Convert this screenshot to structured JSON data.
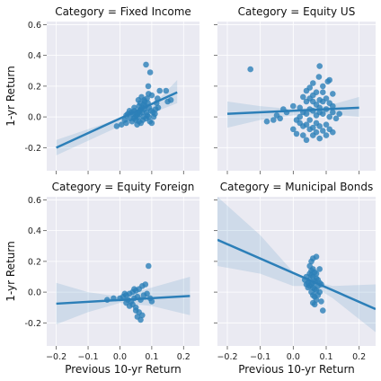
{
  "chart_data": {
    "type": "scatter",
    "xlabel": "Previous 10-yr Return",
    "ylabel": "1-yr Return",
    "xlim": [
      -0.23,
      0.25
    ],
    "ylim": [
      -0.35,
      0.62
    ],
    "x_ticks": [
      "-0.2",
      "-0.1",
      "0.0",
      "0.1",
      "0.2"
    ],
    "x_tick_values": [
      -0.2,
      -0.1,
      0.0,
      0.1,
      0.2
    ],
    "y_ticks": [
      "-0.2",
      "0.0",
      "0.2",
      "0.4",
      "0.6"
    ],
    "y_tick_values": [
      -0.2,
      0.0,
      0.2,
      0.4,
      0.6
    ],
    "grid": true,
    "panels": [
      {
        "title": "Category = Fixed Income",
        "points": [
          [
            0.082,
            0.34
          ],
          [
            0.095,
            0.29
          ],
          [
            0.089,
            0.2
          ],
          [
            0.125,
            0.17
          ],
          [
            0.145,
            0.17
          ],
          [
            0.15,
            0.1
          ],
          [
            0.16,
            0.11
          ],
          [
            0.118,
            0.12
          ],
          [
            0.1,
            0.14
          ],
          [
            0.09,
            0.15
          ],
          [
            0.085,
            0.12
          ],
          [
            0.078,
            0.1
          ],
          [
            0.074,
            0.08
          ],
          [
            0.07,
            0.06
          ],
          [
            0.066,
            0.05
          ],
          [
            0.062,
            0.04
          ],
          [
            0.058,
            0.03
          ],
          [
            0.055,
            0.02
          ],
          [
            0.052,
            0.01
          ],
          [
            0.048,
            0.0
          ],
          [
            0.044,
            -0.01
          ],
          [
            0.04,
            0.02
          ],
          [
            0.036,
            0.03
          ],
          [
            0.03,
            0.04
          ],
          [
            0.025,
            0.02
          ],
          [
            0.02,
            0.01
          ],
          [
            0.015,
            -0.02
          ],
          [
            0.06,
            0.07
          ],
          [
            0.064,
            0.09
          ],
          [
            0.07,
            0.03
          ],
          [
            0.076,
            0.05
          ],
          [
            0.08,
            0.07
          ],
          [
            0.088,
            0.09
          ],
          [
            0.092,
            0.06
          ],
          [
            0.098,
            0.04
          ],
          [
            0.104,
            0.03
          ],
          [
            0.11,
            0.02
          ],
          [
            0.072,
            -0.02
          ],
          [
            0.066,
            -0.04
          ],
          [
            0.06,
            -0.03
          ],
          [
            0.054,
            -0.05
          ],
          [
            0.05,
            -0.02
          ],
          [
            0.045,
            0.06
          ],
          [
            0.038,
            -0.03
          ],
          [
            0.032,
            -0.01
          ],
          [
            0.082,
            -0.01
          ],
          [
            0.086,
            0.01
          ],
          [
            0.094,
            -0.03
          ],
          [
            0.1,
            -0.04
          ],
          [
            0.106,
            0.0
          ],
          [
            0.112,
            0.05
          ],
          [
            0.058,
            0.11
          ],
          [
            0.068,
            0.13
          ],
          [
            0.076,
            0.11
          ],
          [
            0.084,
            0.03
          ],
          [
            0.09,
            0.0
          ],
          [
            -0.01,
            -0.06
          ],
          [
            0.005,
            -0.05
          ],
          [
            0.02,
            -0.04
          ],
          [
            0.115,
            0.09
          ],
          [
            0.12,
            0.06
          ],
          [
            0.056,
            0.0
          ],
          [
            0.074,
            0.0
          ],
          [
            0.062,
            0.02
          ],
          [
            0.046,
            0.04
          ]
        ],
        "fit": {
          "x": [
            -0.2,
            0.18
          ],
          "y": [
            -0.2,
            0.16
          ]
        },
        "ci": {
          "x": [
            -0.2,
            0.0,
            0.06,
            0.12,
            0.18
          ],
          "lower": [
            -0.25,
            -0.06,
            0.02,
            0.04,
            0.09
          ],
          "upper": [
            -0.15,
            -0.01,
            0.05,
            0.11,
            0.24
          ]
        }
      },
      {
        "title": "Category = Equity US",
        "points": [
          [
            -0.13,
            0.31
          ],
          [
            0.08,
            0.33
          ],
          [
            0.078,
            0.26
          ],
          [
            0.06,
            0.22
          ],
          [
            0.105,
            0.23
          ],
          [
            0.11,
            0.24
          ],
          [
            0.05,
            0.19
          ],
          [
            0.04,
            0.17
          ],
          [
            0.07,
            0.16
          ],
          [
            0.09,
            0.2
          ],
          [
            0.03,
            0.13
          ],
          [
            0.04,
            0.1
          ],
          [
            0.05,
            0.12
          ],
          [
            0.06,
            0.1
          ],
          [
            0.07,
            0.08
          ],
          [
            0.08,
            0.11
          ],
          [
            0.09,
            0.1
          ],
          [
            0.1,
            0.12
          ],
          [
            0.11,
            0.09
          ],
          [
            0.12,
            0.07
          ],
          [
            0.02,
            0.06
          ],
          [
            0.03,
            0.03
          ],
          [
            0.04,
            0.02
          ],
          [
            0.05,
            0.05
          ],
          [
            0.06,
            0.04
          ],
          [
            0.07,
            0.01
          ],
          [
            0.08,
            0.03
          ],
          [
            0.09,
            0.02
          ],
          [
            0.1,
            0.05
          ],
          [
            0.11,
            0.0
          ],
          [
            0.12,
            0.03
          ],
          [
            0.13,
            -0.01
          ],
          [
            0.14,
            0.02
          ],
          [
            0.01,
            -0.02
          ],
          [
            0.02,
            -0.04
          ],
          [
            0.03,
            -0.06
          ],
          [
            0.04,
            -0.05
          ],
          [
            0.05,
            -0.08
          ],
          [
            0.06,
            -0.07
          ],
          [
            0.07,
            -0.04
          ],
          [
            0.08,
            -0.06
          ],
          [
            0.09,
            -0.09
          ],
          [
            0.1,
            -0.05
          ],
          [
            0.11,
            -0.08
          ],
          [
            0.12,
            -0.1
          ],
          [
            0.0,
            -0.08
          ],
          [
            0.01,
            -0.11
          ],
          [
            0.03,
            -0.12
          ],
          [
            0.04,
            -0.15
          ],
          [
            0.06,
            -0.12
          ],
          [
            0.08,
            -0.14
          ],
          [
            0.1,
            -0.12
          ],
          [
            -0.02,
            0.03
          ],
          [
            -0.04,
            -0.01
          ],
          [
            -0.06,
            -0.02
          ],
          [
            -0.08,
            -0.03
          ],
          [
            -0.05,
            0.01
          ],
          [
            -0.03,
            0.05
          ],
          [
            0.0,
            0.07
          ],
          [
            0.09,
            0.16
          ],
          [
            0.06,
            0.14
          ],
          [
            0.08,
            0.06
          ],
          [
            0.05,
            -0.02
          ],
          [
            0.07,
            -0.1
          ],
          [
            0.02,
            0.0
          ],
          [
            0.12,
            0.15
          ]
        ],
        "fit": {
          "x": [
            -0.2,
            0.2
          ],
          "y": [
            0.02,
            0.06
          ]
        },
        "ci": {
          "x": [
            -0.2,
            -0.1,
            0.0,
            0.1,
            0.2
          ],
          "lower": [
            -0.07,
            -0.02,
            0.01,
            0.02,
            0.0
          ],
          "upper": [
            0.1,
            0.07,
            0.05,
            0.07,
            0.13
          ]
        }
      },
      {
        "title": "Category = Equity Foreign",
        "points": [
          [
            0.09,
            0.17
          ],
          [
            0.08,
            0.05
          ],
          [
            0.07,
            0.04
          ],
          [
            0.06,
            0.02
          ],
          [
            0.05,
            0.01
          ],
          [
            0.04,
            0.0
          ],
          [
            0.03,
            -0.01
          ],
          [
            0.02,
            -0.02
          ],
          [
            0.01,
            -0.03
          ],
          [
            0.0,
            -0.04
          ],
          [
            0.025,
            -0.05
          ],
          [
            0.035,
            -0.06
          ],
          [
            0.045,
            -0.04
          ],
          [
            0.055,
            -0.03
          ],
          [
            0.065,
            -0.05
          ],
          [
            0.075,
            -0.02
          ],
          [
            0.085,
            -0.01
          ],
          [
            0.095,
            -0.04
          ],
          [
            0.1,
            -0.06
          ],
          [
            0.04,
            -0.08
          ],
          [
            0.05,
            -0.1
          ],
          [
            0.06,
            -0.13
          ],
          [
            0.055,
            -0.16
          ],
          [
            0.065,
            -0.18
          ],
          [
            0.07,
            -0.15
          ],
          [
            0.05,
            -0.12
          ],
          [
            0.03,
            -0.09
          ],
          [
            -0.02,
            -0.04
          ],
          [
            -0.04,
            -0.05
          ],
          [
            0.015,
            -0.01
          ],
          [
            0.045,
            0.02
          ],
          [
            0.02,
            -0.07
          ]
        ],
        "fit": {
          "x": [
            -0.2,
            0.22
          ],
          "y": [
            -0.075,
            -0.025
          ]
        },
        "ci": {
          "x": [
            -0.2,
            -0.1,
            0.0,
            0.1,
            0.22
          ],
          "lower": [
            -0.21,
            -0.13,
            -0.07,
            -0.09,
            -0.15
          ],
          "upper": [
            0.06,
            0.0,
            -0.03,
            0.03,
            0.1
          ]
        }
      },
      {
        "title": "Category = Municipal Bonds",
        "points": [
          [
            0.06,
            0.22
          ],
          [
            0.07,
            0.23
          ],
          [
            0.055,
            0.2
          ],
          [
            0.05,
            0.17
          ],
          [
            0.06,
            0.15
          ],
          [
            0.065,
            0.13
          ],
          [
            0.055,
            0.11
          ],
          [
            0.06,
            0.1
          ],
          [
            0.07,
            0.09
          ],
          [
            0.075,
            0.08
          ],
          [
            0.065,
            0.07
          ],
          [
            0.06,
            0.06
          ],
          [
            0.055,
            0.05
          ],
          [
            0.05,
            0.04
          ],
          [
            0.045,
            0.03
          ],
          [
            0.06,
            0.03
          ],
          [
            0.065,
            0.02
          ],
          [
            0.07,
            0.01
          ],
          [
            0.075,
            0.04
          ],
          [
            0.08,
            0.06
          ],
          [
            0.085,
            0.05
          ],
          [
            0.05,
            0.08
          ],
          [
            0.045,
            0.06
          ],
          [
            0.055,
            0.0
          ],
          [
            0.06,
            -0.02
          ],
          [
            0.065,
            -0.03
          ],
          [
            0.07,
            -0.05
          ],
          [
            0.075,
            -0.02
          ],
          [
            0.08,
            0.0
          ],
          [
            0.085,
            -0.06
          ],
          [
            0.06,
            -0.07
          ],
          [
            0.065,
            -0.08
          ],
          [
            0.09,
            -0.12
          ],
          [
            0.05,
            0.12
          ],
          [
            0.04,
            0.1
          ],
          [
            0.04,
            0.05
          ],
          [
            0.035,
            0.08
          ],
          [
            0.07,
            0.12
          ],
          [
            0.08,
            0.15
          ],
          [
            0.055,
            0.14
          ]
        ],
        "fit": {
          "x": [
            -0.23,
            0.25
          ],
          "y": [
            0.34,
            -0.11
          ]
        },
        "ci": {
          "x": [
            -0.23,
            -0.1,
            0.0,
            0.06,
            0.12,
            0.25
          ],
          "lower": [
            0.17,
            0.12,
            0.04,
            0.04,
            -0.04,
            -0.26
          ],
          "upper": [
            0.62,
            0.37,
            0.13,
            0.07,
            0.04,
            0.05
          ]
        }
      }
    ]
  }
}
